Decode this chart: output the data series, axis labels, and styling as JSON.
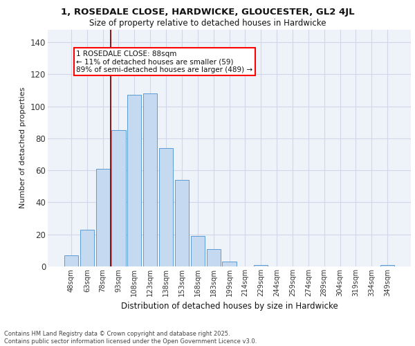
{
  "title_line1": "1, ROSEDALE CLOSE, HARDWICKE, GLOUCESTER, GL2 4JL",
  "title_line2": "Size of property relative to detached houses in Hardwicke",
  "xlabel": "Distribution of detached houses by size in Hardwicke",
  "ylabel": "Number of detached properties",
  "categories": [
    "48sqm",
    "63sqm",
    "78sqm",
    "93sqm",
    "108sqm",
    "123sqm",
    "138sqm",
    "153sqm",
    "168sqm",
    "183sqm",
    "199sqm",
    "214sqm",
    "229sqm",
    "244sqm",
    "259sqm",
    "274sqm",
    "289sqm",
    "304sqm",
    "319sqm",
    "334sqm",
    "349sqm"
  ],
  "values": [
    7,
    23,
    61,
    85,
    107,
    108,
    74,
    54,
    19,
    11,
    3,
    0,
    1,
    0,
    0,
    0,
    0,
    0,
    0,
    0,
    1
  ],
  "bar_color": "#c5d9f0",
  "bar_edge_color": "#5b9bd5",
  "grid_color": "#d0d8e8",
  "bg_color": "#eef2f9",
  "annotation_text": "1 ROSEDALE CLOSE: 88sqm\n← 11% of detached houses are smaller (59)\n89% of semi-detached houses are larger (489) →",
  "vline_x": 2.48,
  "footer_line1": "Contains HM Land Registry data © Crown copyright and database right 2025.",
  "footer_line2": "Contains public sector information licensed under the Open Government Licence v3.0.",
  "yticks": [
    0,
    20,
    40,
    60,
    80,
    100,
    120,
    140
  ],
  "ymax": 148
}
